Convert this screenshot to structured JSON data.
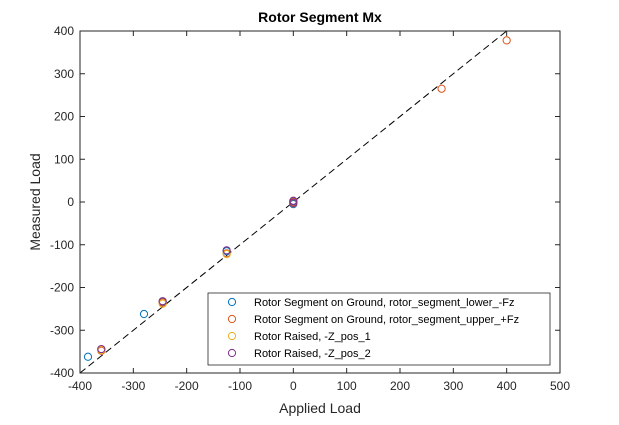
{
  "chart_data": {
    "type": "scatter",
    "title": "Rotor Segment Mx",
    "xlabel": "Applied Load",
    "ylabel": "Measured Load",
    "xlim": [
      -400,
      500
    ],
    "ylim": [
      -400,
      400
    ],
    "xticks": [
      -400,
      -300,
      -200,
      -100,
      0,
      100,
      200,
      300,
      400,
      500
    ],
    "yticks": [
      -400,
      -300,
      -200,
      -100,
      0,
      100,
      200,
      300,
      400
    ],
    "grid": false,
    "legend_position": "bottom-right",
    "reference_line": {
      "style": "dashed",
      "color": "#000000",
      "from": [
        -400,
        -400
      ],
      "to": [
        400,
        400
      ]
    },
    "series": [
      {
        "name": "Rotor Segment on Ground, rotor_segment_lower_-Fz",
        "color": "#0072BD",
        "x": [
          -385,
          -280,
          -360,
          -245,
          -125,
          0,
          0
        ],
        "y": [
          -362,
          -262,
          -345,
          -233,
          -115,
          2,
          -5
        ]
      },
      {
        "name": "Rotor Segment on Ground, rotor_segment_upper_+Fz",
        "color": "#D95319",
        "x": [
          -360,
          -245,
          -125,
          0,
          0,
          278,
          400
        ],
        "y": [
          -348,
          -235,
          -120,
          0,
          -3,
          265,
          378
        ]
      },
      {
        "name": "Rotor Raised, -Z_pos_1",
        "color": "#EDB120",
        "x": [
          -360,
          -245,
          -125,
          0
        ],
        "y": [
          -346,
          -238,
          -122,
          -2
        ]
      },
      {
        "name": "Rotor Raised, -Z_pos_2",
        "color": "#7E2F8E",
        "x": [
          -360,
          -245,
          -125,
          0,
          0
        ],
        "y": [
          -344,
          -232,
          -113,
          3,
          -2
        ]
      }
    ]
  }
}
